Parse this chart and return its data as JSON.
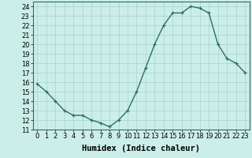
{
  "x": [
    0,
    1,
    2,
    3,
    4,
    5,
    6,
    7,
    8,
    9,
    10,
    11,
    12,
    13,
    14,
    15,
    16,
    17,
    18,
    19,
    20,
    21,
    22,
    23
  ],
  "y": [
    15.8,
    15.0,
    14.0,
    13.0,
    12.5,
    12.5,
    12.0,
    11.7,
    11.3,
    12.0,
    13.0,
    15.0,
    17.5,
    20.0,
    22.0,
    23.3,
    23.3,
    24.0,
    23.8,
    23.3,
    20.0,
    18.5,
    18.0,
    17.0
  ],
  "line_color": "#2d6e63",
  "marker": "+",
  "bg_color": "#cceee8",
  "grid_color": "#aad8d0",
  "xlabel": "Humidex (Indice chaleur)",
  "ylim": [
    11,
    24.5
  ],
  "xlim": [
    -0.5,
    23.5
  ],
  "yticks": [
    11,
    12,
    13,
    14,
    15,
    16,
    17,
    18,
    19,
    20,
    21,
    22,
    23,
    24
  ],
  "xticks": [
    0,
    1,
    2,
    3,
    4,
    5,
    6,
    7,
    8,
    9,
    10,
    11,
    12,
    13,
    14,
    15,
    16,
    17,
    18,
    19,
    20,
    21,
    22,
    23
  ],
  "xlabel_fontsize": 7.5,
  "tick_fontsize": 6.0,
  "line_width": 1.0,
  "marker_size": 3.5,
  "spine_color": "#2d6e63"
}
